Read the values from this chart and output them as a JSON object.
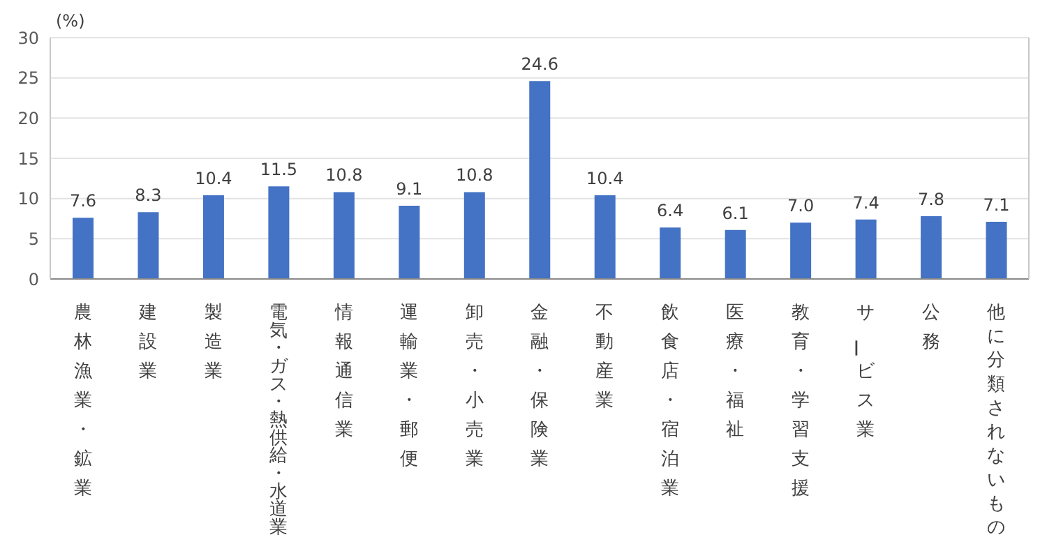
{
  "chart_data": {
    "type": "bar",
    "ylabel": "(%)",
    "categories": [
      "農林漁業・鉱業",
      "建設業",
      "製造業",
      "電気・ガス・熱供給・水道業",
      "情報通信業",
      "運輸業・郵便",
      "卸売・小売業",
      "金融・保険業",
      "不動産業",
      "飲食店・宿泊業",
      "医療・福祉",
      "教育・学習支援",
      "サービス業",
      "公務",
      "他に分類されないもの"
    ],
    "values": [
      7.6,
      8.3,
      10.4,
      11.5,
      10.8,
      9.1,
      10.8,
      24.6,
      10.4,
      6.4,
      6.1,
      7.0,
      7.4,
      7.8,
      7.1
    ],
    "value_labels": [
      "7.6",
      "8.3",
      "10.4",
      "11.5",
      "10.8",
      "9.1",
      "10.8",
      "24.6",
      "10.4",
      "6.4",
      "6.1",
      "7.0",
      "7.4",
      "7.8",
      "7.1"
    ],
    "color": "#4472c4",
    "ylim": [
      0,
      30
    ],
    "yticks": [
      0,
      5,
      10,
      15,
      20,
      25,
      30
    ],
    "grid": "y"
  }
}
